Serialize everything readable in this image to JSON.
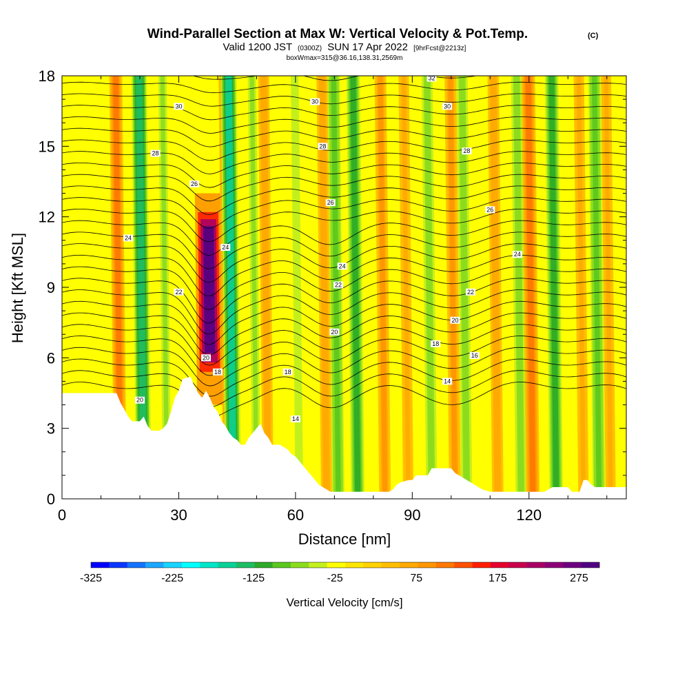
{
  "title": {
    "main": "Wind-Parallel Section at Max W: Vertical Velocity & Pot.Temp.",
    "copyright": "(C)",
    "valid_pre": "Valid 1200 JST",
    "valid_utc": "(0300Z)",
    "valid_date": "SUN 17 Apr 2022",
    "fcst": "[9hrFcst@2213z]",
    "box": "boxWmax=315@36.16,138.31,2569m"
  },
  "chart_data": {
    "type": "heatmap",
    "xlabel": "Distance [nm]",
    "ylabel": "Height [Kft MSL]",
    "xlim": [
      0,
      145
    ],
    "ylim": [
      0,
      18
    ],
    "x_ticks": [
      0,
      30,
      60,
      90,
      120
    ],
    "y_ticks": [
      0,
      3,
      6,
      9,
      12,
      15,
      18
    ],
    "colorbar": {
      "title": "Vertical Velocity [cm/s]",
      "tick_labels": [
        -325,
        -225,
        -125,
        -25,
        75,
        175,
        275
      ],
      "min": -325,
      "max": 300,
      "colors": [
        "#0000ff",
        "#0a38ff",
        "#1473ff",
        "#1ca6ff",
        "#18d4ff",
        "#00ffff",
        "#00e6c8",
        "#0ad296",
        "#1ebe64",
        "#2daa28",
        "#5ac81e",
        "#8cdc1e",
        "#c3f01e",
        "#ffff00",
        "#ffe600",
        "#ffd200",
        "#ffbe00",
        "#ffaa00",
        "#ff9600",
        "#ff7800",
        "#ff5000",
        "#ff1e00",
        "#e6002d",
        "#c8004b",
        "#aa0064",
        "#8c0078",
        "#6e0082",
        "#500082"
      ]
    },
    "terrain_kft": [
      [
        0,
        4.5
      ],
      [
        14,
        4.5
      ],
      [
        15,
        4.1
      ],
      [
        16,
        3.8
      ],
      [
        17,
        3.5
      ],
      [
        18,
        3.3
      ],
      [
        20,
        3.3
      ],
      [
        21,
        3.5
      ],
      [
        22,
        3.1
      ],
      [
        23,
        2.9
      ],
      [
        25,
        2.9
      ],
      [
        26,
        3.0
      ],
      [
        27,
        3.2
      ],
      [
        28,
        3.7
      ],
      [
        29,
        4.3
      ],
      [
        30,
        4.6
      ],
      [
        31,
        5.1
      ],
      [
        33,
        5.2
      ],
      [
        34,
        4.8
      ],
      [
        35,
        4.5
      ],
      [
        36,
        4.3
      ],
      [
        37,
        4.6
      ],
      [
        38,
        4.3
      ],
      [
        39,
        3.9
      ],
      [
        40,
        3.7
      ],
      [
        41,
        3.3
      ],
      [
        42,
        3.1
      ],
      [
        43,
        2.8
      ],
      [
        44,
        2.6
      ],
      [
        45,
        2.5
      ],
      [
        46,
        2.3
      ],
      [
        47,
        2.3
      ],
      [
        48,
        2.6
      ],
      [
        49,
        2.8
      ],
      [
        50,
        3.0
      ],
      [
        51,
        3.2
      ],
      [
        52,
        2.8
      ],
      [
        53,
        2.6
      ],
      [
        54,
        2.3
      ],
      [
        55,
        2.3
      ],
      [
        56,
        2.3
      ],
      [
        57,
        2.2
      ],
      [
        58,
        2.1
      ],
      [
        59,
        1.9
      ],
      [
        60,
        1.8
      ],
      [
        61,
        1.6
      ],
      [
        62,
        1.4
      ],
      [
        63,
        1.2
      ],
      [
        64,
        1.0
      ],
      [
        65,
        0.8
      ],
      [
        66,
        0.6
      ],
      [
        67,
        0.5
      ],
      [
        68,
        0.4
      ],
      [
        69,
        0.3
      ],
      [
        80,
        0.3
      ],
      [
        84,
        0.3
      ],
      [
        85,
        0.4
      ],
      [
        86,
        0.6
      ],
      [
        87,
        0.7
      ],
      [
        89,
        0.8
      ],
      [
        90,
        0.8
      ],
      [
        91,
        1.0
      ],
      [
        94,
        1.0
      ],
      [
        95,
        1.3
      ],
      [
        100,
        1.3
      ],
      [
        101,
        1.1
      ],
      [
        103,
        0.9
      ],
      [
        105,
        0.7
      ],
      [
        106,
        0.6
      ],
      [
        108,
        0.4
      ],
      [
        110,
        0.3
      ],
      [
        124,
        0.3
      ],
      [
        126,
        0.5
      ],
      [
        130,
        0.5
      ],
      [
        131,
        0.3
      ],
      [
        133,
        0.3
      ],
      [
        134,
        0.8
      ],
      [
        135,
        0.8
      ],
      [
        136,
        0.6
      ],
      [
        137,
        0.5
      ],
      [
        145,
        0.5
      ]
    ],
    "updrafts": [
      {
        "x": 15,
        "w": 100
      },
      {
        "x": 38,
        "w": 300
      },
      {
        "x": 43,
        "w": 90
      },
      {
        "x": 53,
        "w": 70
      },
      {
        "x": 68,
        "w": 70
      },
      {
        "x": 83,
        "w": 80
      },
      {
        "x": 89,
        "w": 60
      },
      {
        "x": 101,
        "w": 80
      },
      {
        "x": 112,
        "w": 75
      },
      {
        "x": 121,
        "w": 110
      },
      {
        "x": 134,
        "w": 60
      },
      {
        "x": 141,
        "w": 55
      }
    ],
    "downdrafts": [
      {
        "x": 21,
        "w": -140
      },
      {
        "x": 27,
        "w": -60
      },
      {
        "x": 44,
        "w": -150
      },
      {
        "x": 50,
        "w": -60
      },
      {
        "x": 61,
        "w": -50
      },
      {
        "x": 71,
        "w": -90
      },
      {
        "x": 76,
        "w": -110
      },
      {
        "x": 95,
        "w": -70
      },
      {
        "x": 104,
        "w": -70
      },
      {
        "x": 118,
        "w": -70
      },
      {
        "x": 127,
        "w": -110
      },
      {
        "x": 138,
        "w": -90
      }
    ],
    "theta_contours": [
      {
        "label": "14",
        "labels_at": [
          [
            60,
            3.4
          ],
          [
            99,
            5.0
          ]
        ]
      },
      {
        "label": "16",
        "labels_at": [
          [
            106,
            6.1
          ]
        ]
      },
      {
        "label": "18",
        "labels_at": [
          [
            58,
            5.4
          ],
          [
            40,
            5.4
          ],
          [
            96,
            6.6
          ]
        ]
      },
      {
        "label": "20",
        "labels_at": [
          [
            20,
            4.2
          ],
          [
            37,
            6.0
          ],
          [
            70,
            7.1
          ],
          [
            101,
            7.6
          ]
        ]
      },
      {
        "label": "22",
        "labels_at": [
          [
            30,
            8.8
          ],
          [
            71,
            9.1
          ],
          [
            105,
            8.8
          ]
        ]
      },
      {
        "label": "24",
        "labels_at": [
          [
            17,
            11.1
          ],
          [
            42,
            10.7
          ],
          [
            72,
            9.9
          ],
          [
            117,
            10.4
          ]
        ]
      },
      {
        "label": "26",
        "labels_at": [
          [
            34,
            13.4
          ],
          [
            69,
            12.6
          ],
          [
            110,
            12.3
          ]
        ]
      },
      {
        "label": "28",
        "labels_at": [
          [
            24,
            14.7
          ],
          [
            67,
            15.0
          ],
          [
            104,
            14.8
          ]
        ]
      },
      {
        "label": "30",
        "labels_at": [
          [
            30,
            16.7
          ],
          [
            65,
            16.9
          ],
          [
            99,
            16.7
          ]
        ]
      },
      {
        "label": "32",
        "labels_at": [
          [
            95,
            17.9
          ]
        ]
      }
    ]
  }
}
